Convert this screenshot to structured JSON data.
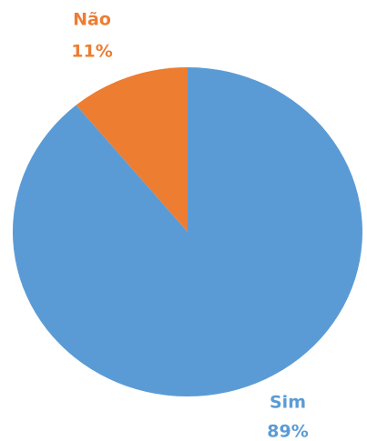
{
  "chart_data": {
    "type": "pie",
    "categories": [
      "Sim",
      "Não"
    ],
    "values": [
      89,
      11
    ],
    "value_labels": [
      "89%",
      "11%"
    ],
    "colors": [
      "#5b9bd5",
      "#ed7d31"
    ]
  }
}
